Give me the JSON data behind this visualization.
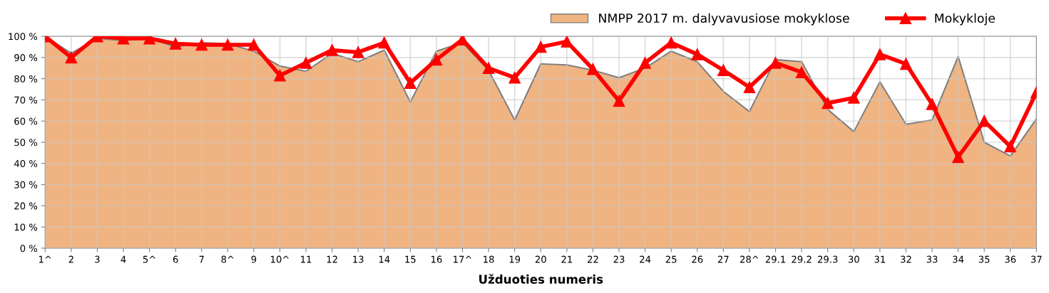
{
  "chart_data": {
    "type": "area",
    "xlabel": "Užduoties numeris",
    "categories": [
      "1^",
      "2",
      "3",
      "4",
      "5^",
      "6",
      "7",
      "8^",
      "9",
      "10^",
      "11",
      "12",
      "13",
      "14",
      "15",
      "16",
      "17^",
      "18",
      "19",
      "20",
      "21",
      "22",
      "23",
      "24",
      "25",
      "26",
      "27",
      "28^",
      "29.1",
      "29.2",
      "29.3",
      "30",
      "31",
      "32",
      "33",
      "34",
      "35",
      "36",
      "37"
    ],
    "series": [
      {
        "name": "NMPP 2017 m. dalyvavusiose mokyklose",
        "color": "#f0b482",
        "values": [
          100,
          92,
          99,
          98,
          99,
          95,
          97,
          96.5,
          93,
          86,
          83.5,
          92,
          88,
          93.5,
          69,
          93,
          97,
          84,
          60.5,
          87,
          86.5,
          84,
          80.5,
          85,
          93,
          88,
          74,
          64.5,
          89,
          88,
          65.5,
          55,
          78.5,
          58.5,
          60.5,
          90.5,
          50,
          43.5,
          61
        ]
      },
      {
        "name": "Mokykloje",
        "type": "line",
        "color": "#ff0000",
        "marker": "triangle",
        "values": [
          100,
          90,
          100,
          99,
          99,
          96.5,
          96,
          96,
          96,
          81.5,
          87.5,
          93.5,
          92.5,
          97,
          78,
          89,
          98.5,
          85,
          80.5,
          95,
          97.5,
          84.5,
          69.5,
          87.5,
          97,
          91.5,
          84,
          76,
          87.5,
          83,
          68.5,
          71,
          91.5,
          87,
          68,
          43,
          60,
          48,
          73.5
        ]
      }
    ],
    "ylim": [
      0,
      100
    ],
    "yticks": [
      {
        "value": 0,
        "label": "0 %"
      },
      {
        "value": 10,
        "label": "10 %"
      },
      {
        "value": 20,
        "label": "20 %"
      },
      {
        "value": 30,
        "label": "30 %"
      },
      {
        "value": 40,
        "label": "40 %"
      },
      {
        "value": 50,
        "label": "50 %"
      },
      {
        "value": 60,
        "label": "60 %"
      },
      {
        "value": 70,
        "label": "70 %"
      },
      {
        "value": 80,
        "label": "80 %"
      },
      {
        "value": 90,
        "label": "90 %"
      },
      {
        "value": 100,
        "label": "100 %"
      }
    ],
    "grid": true,
    "legend": "top right"
  }
}
